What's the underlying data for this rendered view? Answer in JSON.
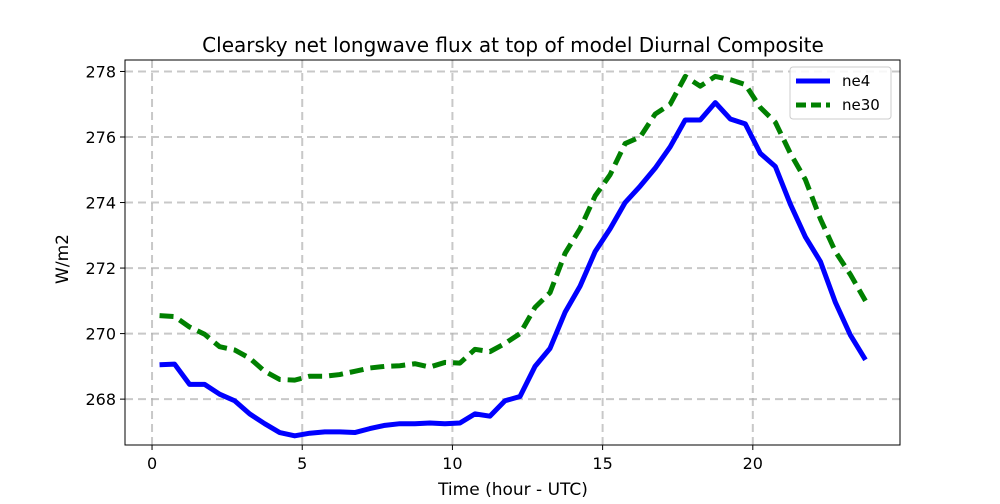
{
  "chart_data": {
    "type": "line",
    "title": "Clearsky net longwave flux at top of model Diurnal Composite",
    "xlabel": "Time (hour - UTC)",
    "ylabel": "W/m2",
    "xlim": [
      -0.9,
      24.9
    ],
    "ylim": [
      266.6,
      278.35
    ],
    "xticks": [
      0,
      5,
      10,
      15,
      20
    ],
    "yticks": [
      268,
      270,
      272,
      274,
      276,
      278
    ],
    "grid": true,
    "legend_position": "top-right",
    "x": [
      0.25,
      0.75,
      1.25,
      1.75,
      2.25,
      2.75,
      3.25,
      3.75,
      4.25,
      4.75,
      5.25,
      5.75,
      6.25,
      6.75,
      7.25,
      7.75,
      8.25,
      8.75,
      9.25,
      9.75,
      10.25,
      10.75,
      11.25,
      11.75,
      12.25,
      12.75,
      13.25,
      13.75,
      14.25,
      14.75,
      15.25,
      15.75,
      16.25,
      16.75,
      17.25,
      17.75,
      18.25,
      18.75,
      19.25,
      19.75,
      20.25,
      20.75,
      21.25,
      21.75,
      22.25,
      22.75,
      23.25,
      23.75
    ],
    "series": [
      {
        "name": "ne4",
        "color": "#0000ff",
        "style": "solid",
        "values": [
          269.05,
          269.07,
          268.45,
          268.45,
          268.15,
          267.95,
          267.55,
          267.25,
          266.98,
          266.88,
          266.96,
          267.0,
          267.0,
          266.98,
          267.1,
          267.2,
          267.25,
          267.25,
          267.27,
          267.25,
          267.27,
          267.55,
          267.48,
          267.95,
          268.08,
          269.0,
          269.55,
          270.65,
          271.45,
          272.5,
          273.2,
          274.0,
          274.5,
          275.05,
          275.7,
          276.52,
          276.52,
          277.05,
          276.55,
          276.4,
          275.5,
          275.1,
          273.95,
          272.95,
          272.2,
          270.95,
          269.95,
          269.2
        ]
      },
      {
        "name": "ne30",
        "color": "#008000",
        "style": "dashed",
        "values": [
          270.55,
          270.52,
          270.2,
          269.98,
          269.6,
          269.5,
          269.25,
          268.85,
          268.6,
          268.58,
          268.7,
          268.7,
          268.75,
          268.85,
          268.95,
          269.0,
          269.02,
          269.08,
          268.98,
          269.12,
          269.1,
          269.52,
          269.45,
          269.7,
          270.0,
          270.8,
          271.25,
          272.45,
          273.2,
          274.2,
          274.85,
          275.8,
          276.0,
          276.7,
          277.0,
          277.85,
          277.55,
          277.85,
          277.75,
          277.6,
          276.9,
          276.45,
          275.5,
          274.7,
          273.5,
          272.5,
          271.8,
          271.0
        ]
      }
    ]
  }
}
